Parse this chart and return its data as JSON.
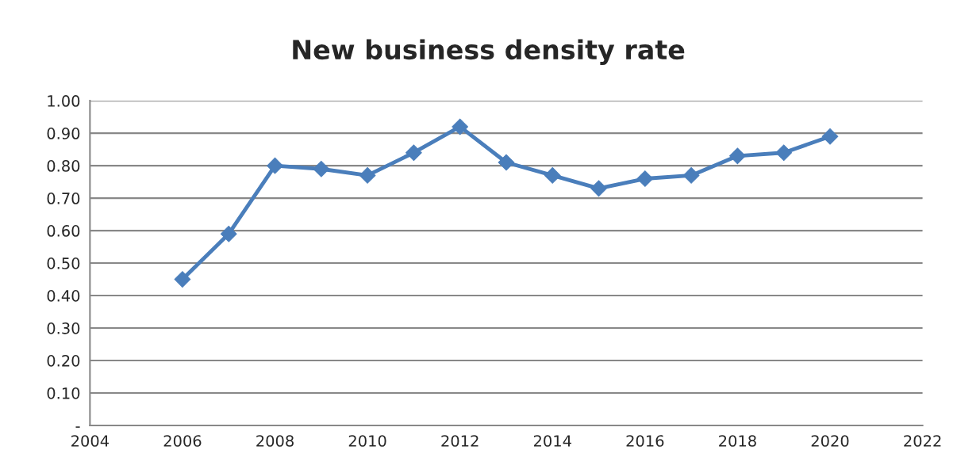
{
  "chart_data": {
    "type": "line",
    "title": "New business density rate",
    "x": [
      2006,
      2007,
      2008,
      2009,
      2010,
      2011,
      2012,
      2013,
      2014,
      2015,
      2016,
      2017,
      2018,
      2019,
      2020
    ],
    "series": [
      {
        "color": "#4a7ebb",
        "values": [
          0.45,
          0.59,
          0.8,
          0.79,
          0.77,
          0.84,
          0.92,
          0.81,
          0.77,
          0.73,
          0.76,
          0.77,
          0.83,
          0.84,
          0.89
        ]
      }
    ],
    "xlim": [
      2004,
      2022
    ],
    "xticks": [
      2004,
      2006,
      2008,
      2010,
      2012,
      2014,
      2016,
      2018,
      2020,
      2022
    ],
    "ylim": [
      0,
      1.0
    ],
    "yticks": [
      {
        "value": 0,
        "label": "-"
      },
      {
        "value": 0.1,
        "label": "0.10"
      },
      {
        "value": 0.2,
        "label": "0.20"
      },
      {
        "value": 0.3,
        "label": "0.30"
      },
      {
        "value": 0.4,
        "label": "0.40"
      },
      {
        "value": 0.5,
        "label": "0.50"
      },
      {
        "value": 0.6,
        "label": "0.60"
      },
      {
        "value": 0.7,
        "label": "0.70"
      },
      {
        "value": 0.8,
        "label": "0.80"
      },
      {
        "value": 0.9,
        "label": "0.90"
      },
      {
        "value": 1.0,
        "label": "1.00"
      }
    ],
    "grid": "y",
    "legend": false,
    "marker": "diamond",
    "line_style": "solid"
  }
}
